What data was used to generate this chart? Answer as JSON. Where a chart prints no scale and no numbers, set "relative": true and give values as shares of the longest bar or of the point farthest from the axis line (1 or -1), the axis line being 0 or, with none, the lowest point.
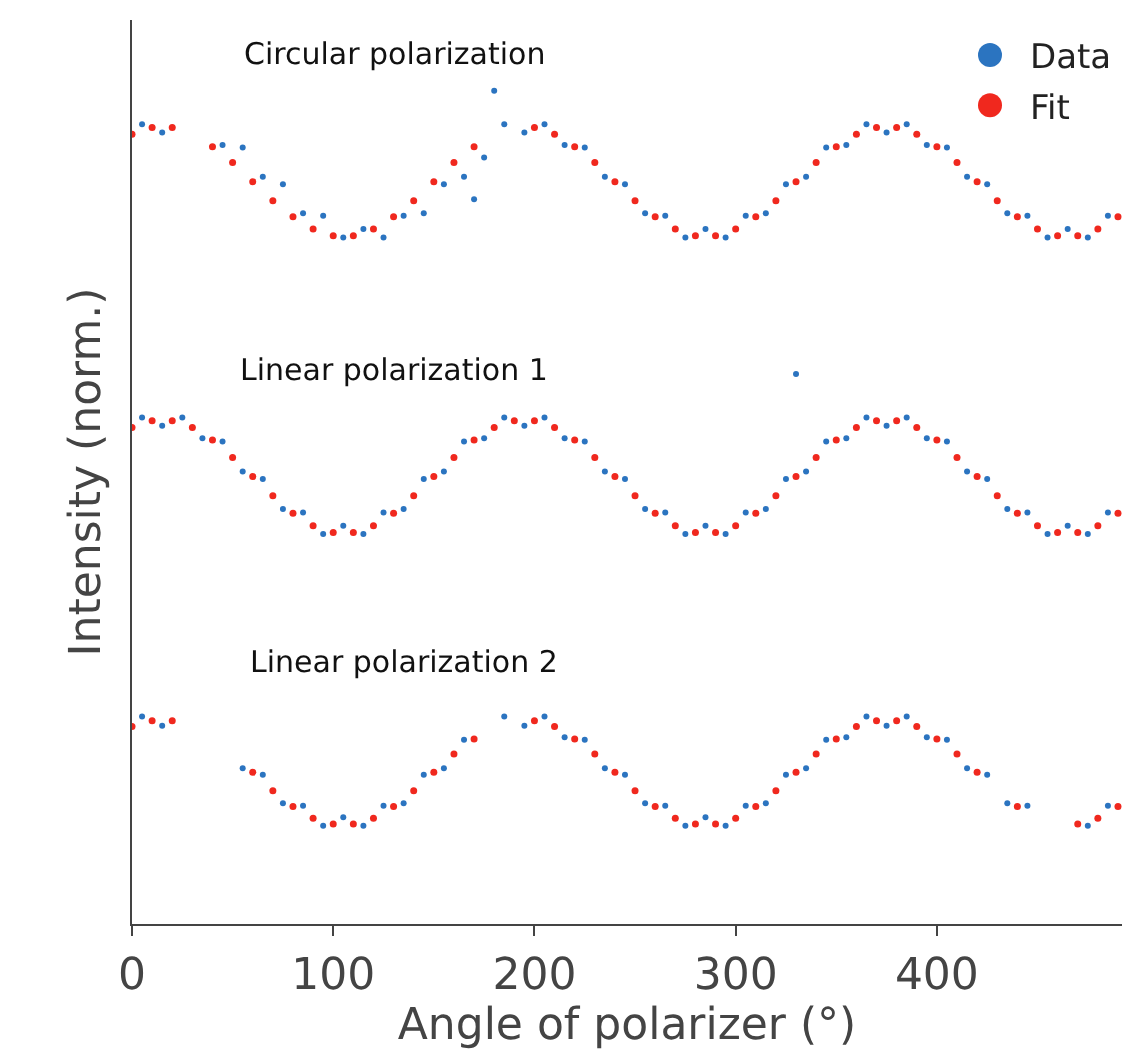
{
  "chart_data": {
    "type": "scatter",
    "relative": true,
    "xlabel": "Angle of polarizer (°)",
    "ylabel": "Intensity (norm.)",
    "xlim": [
      0,
      492
    ],
    "xticks": [
      0,
      100,
      200,
      300,
      400
    ],
    "legend": "top right",
    "marker": "circle",
    "annotations": [
      "Circular polarization",
      "Linear polarization 1",
      "Linear polarization 2"
    ],
    "series": [
      {
        "name": "Data",
        "color": "#2b74c0",
        "x": [
          5,
          15,
          45,
          55,
          65,
          75,
          85,
          95,
          105,
          115,
          125,
          135,
          145,
          155,
          165,
          170,
          175,
          180,
          185,
          195,
          205,
          215,
          225,
          235,
          245,
          255,
          265,
          275,
          285,
          295,
          305,
          315,
          325,
          335,
          345,
          355,
          365,
          375,
          385,
          395,
          405,
          415,
          425,
          435,
          445,
          455,
          465,
          475,
          485,
          5,
          15,
          25,
          35,
          45,
          55,
          65,
          75,
          85,
          95,
          105,
          115,
          125,
          135,
          145,
          155,
          165,
          175,
          185,
          195,
          205,
          215,
          225,
          235,
          245,
          255,
          265,
          275,
          285,
          295,
          305,
          315,
          325,
          335,
          345,
          355,
          365,
          375,
          385,
          395,
          405,
          415,
          425,
          435,
          445,
          455,
          465,
          475,
          485,
          330,
          5,
          15,
          55,
          65,
          75,
          85,
          95,
          105,
          115,
          125,
          135,
          145,
          155,
          165,
          185,
          195,
          205,
          215,
          225,
          235,
          245,
          255,
          265,
          275,
          285,
          295,
          305,
          315,
          325,
          335,
          345,
          355,
          365,
          375,
          385,
          395,
          405,
          415,
          425,
          435,
          445,
          475,
          485
        ],
        "values": [
          0.96,
          0.95,
          0.935,
          0.932,
          0.897,
          0.888,
          0.853,
          0.85,
          0.824,
          0.834,
          0.824,
          0.85,
          0.853,
          0.888,
          0.897,
          0.87,
          0.92,
          1.0,
          0.96,
          0.95,
          0.96,
          0.935,
          0.932,
          0.897,
          0.888,
          0.853,
          0.85,
          0.824,
          0.834,
          0.824,
          0.85,
          0.853,
          0.888,
          0.897,
          0.932,
          0.935,
          0.96,
          0.95,
          0.96,
          0.935,
          0.932,
          0.897,
          0.888,
          0.853,
          0.85,
          0.824,
          0.834,
          0.824,
          0.85,
          0.608,
          0.598,
          0.608,
          0.583,
          0.579,
          0.543,
          0.534,
          0.498,
          0.494,
          0.468,
          0.478,
          0.468,
          0.494,
          0.498,
          0.534,
          0.543,
          0.579,
          0.583,
          0.608,
          0.598,
          0.608,
          0.583,
          0.579,
          0.543,
          0.534,
          0.498,
          0.494,
          0.468,
          0.478,
          0.468,
          0.494,
          0.498,
          0.534,
          0.543,
          0.579,
          0.583,
          0.608,
          0.598,
          0.608,
          0.583,
          0.579,
          0.543,
          0.534,
          0.498,
          0.494,
          0.468,
          0.478,
          0.468,
          0.494,
          0.66,
          0.249,
          0.238,
          0.187,
          0.179,
          0.145,
          0.142,
          0.118,
          0.128,
          0.118,
          0.142,
          0.145,
          0.179,
          0.187,
          0.221,
          0.249,
          0.238,
          0.249,
          0.224,
          0.221,
          0.187,
          0.179,
          0.145,
          0.142,
          0.118,
          0.128,
          0.118,
          0.142,
          0.145,
          0.179,
          0.187,
          0.221,
          0.224,
          0.249,
          0.238,
          0.249,
          0.224,
          0.221,
          0.187,
          0.179,
          0.145,
          0.142,
          0.118,
          0.142
        ]
      },
      {
        "name": "Fit",
        "color": "#f0281e",
        "x": [
          0,
          10,
          20,
          40,
          50,
          60,
          70,
          80,
          90,
          100,
          110,
          120,
          130,
          140,
          150,
          160,
          170,
          200,
          210,
          220,
          230,
          240,
          250,
          260,
          270,
          280,
          290,
          300,
          310,
          320,
          330,
          340,
          350,
          360,
          370,
          380,
          390,
          400,
          410,
          420,
          430,
          440,
          450,
          460,
          470,
          480,
          490,
          0,
          10,
          20,
          30,
          40,
          50,
          60,
          70,
          80,
          90,
          100,
          110,
          120,
          130,
          140,
          150,
          160,
          170,
          180,
          190,
          200,
          210,
          220,
          230,
          240,
          250,
          260,
          270,
          280,
          290,
          300,
          310,
          320,
          330,
          340,
          350,
          360,
          370,
          380,
          390,
          400,
          410,
          420,
          430,
          440,
          450,
          460,
          470,
          480,
          490,
          0,
          10,
          20,
          60,
          70,
          80,
          90,
          100,
          110,
          120,
          130,
          140,
          150,
          160,
          170,
          200,
          210,
          220,
          230,
          240,
          250,
          260,
          270,
          280,
          290,
          300,
          310,
          320,
          330,
          340,
          350,
          360,
          370,
          380,
          390,
          400,
          410,
          420,
          440,
          470,
          480,
          490
        ],
        "values": [
          0.948,
          0.956,
          0.956,
          0.933,
          0.914,
          0.891,
          0.868,
          0.849,
          0.834,
          0.826,
          0.826,
          0.834,
          0.849,
          0.868,
          0.891,
          0.914,
          0.933,
          0.956,
          0.948,
          0.933,
          0.914,
          0.891,
          0.868,
          0.849,
          0.834,
          0.826,
          0.826,
          0.834,
          0.849,
          0.868,
          0.891,
          0.914,
          0.933,
          0.948,
          0.956,
          0.956,
          0.948,
          0.933,
          0.914,
          0.891,
          0.868,
          0.849,
          0.834,
          0.826,
          0.826,
          0.834,
          0.849,
          0.596,
          0.604,
          0.604,
          0.596,
          0.581,
          0.56,
          0.537,
          0.514,
          0.493,
          0.478,
          0.47,
          0.47,
          0.478,
          0.493,
          0.514,
          0.537,
          0.56,
          0.581,
          0.596,
          0.604,
          0.604,
          0.596,
          0.581,
          0.56,
          0.537,
          0.514,
          0.493,
          0.478,
          0.47,
          0.47,
          0.478,
          0.493,
          0.514,
          0.537,
          0.56,
          0.581,
          0.596,
          0.604,
          0.604,
          0.596,
          0.581,
          0.56,
          0.537,
          0.514,
          0.493,
          0.478,
          0.47,
          0.47,
          0.478,
          0.493,
          0.237,
          0.244,
          0.244,
          0.182,
          0.16,
          0.141,
          0.127,
          0.12,
          0.12,
          0.127,
          0.141,
          0.16,
          0.182,
          0.204,
          0.222,
          0.244,
          0.237,
          0.222,
          0.204,
          0.182,
          0.16,
          0.141,
          0.127,
          0.12,
          0.12,
          0.127,
          0.141,
          0.16,
          0.182,
          0.204,
          0.222,
          0.237,
          0.244,
          0.244,
          0.237,
          0.222,
          0.204,
          0.182,
          0.141,
          0.12,
          0.127,
          0.141
        ]
      }
    ]
  }
}
